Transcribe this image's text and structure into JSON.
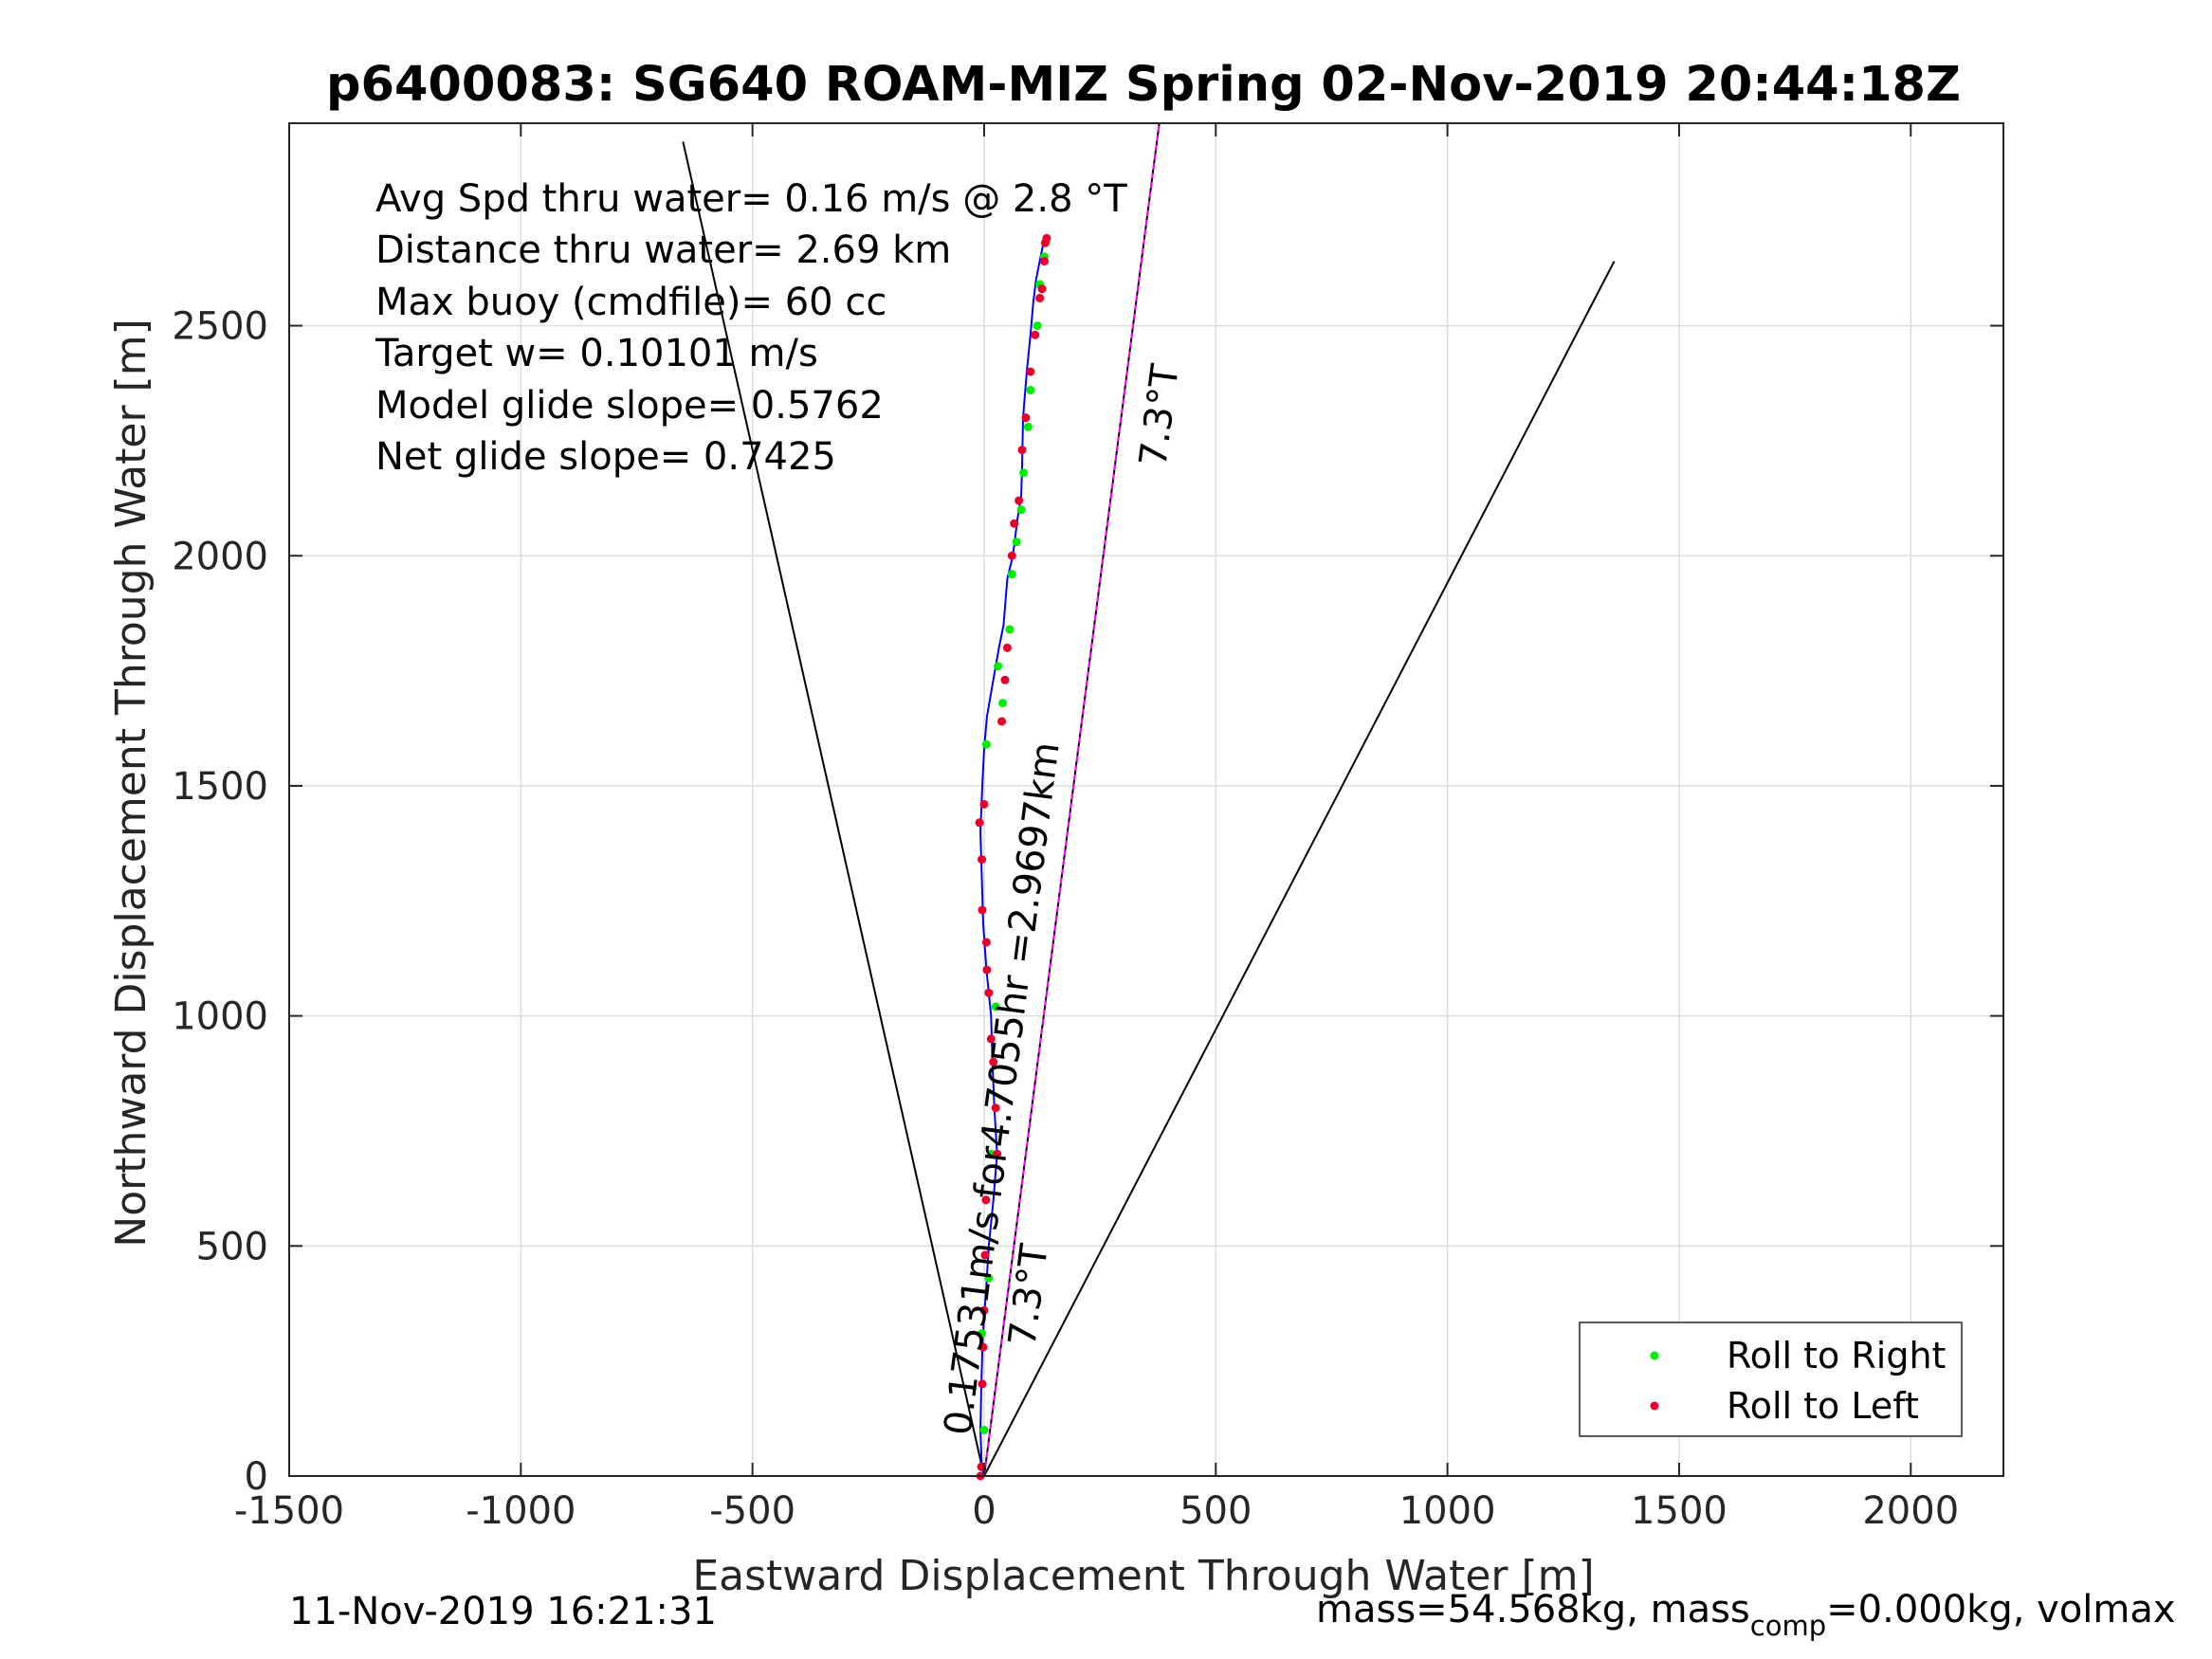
{
  "colors": {
    "track": "#0000ff",
    "roll_right": "#00ee00",
    "roll_left": "#e8002a",
    "course_line": "#ff00ff",
    "grid": "#dddddd",
    "axis": "#262626"
  },
  "footer": {
    "timestamp": "11-Nov-2019 16:21:31",
    "mass_prefix": "mass=54.568kg, mass",
    "mass_sub": "comp",
    "mass_suffix": "=0.000kg, volmax"
  },
  "chart_data": {
    "type": "line",
    "title": "p6400083: SG640 ROAM-MIZ Spring 02-Nov-2019 20:44:18Z",
    "xlabel": "Eastward Displacement Through Water [m]",
    "ylabel": "Northward Displacement Through Water [m]",
    "xlim": [
      -1500,
      2200
    ],
    "ylim": [
      0,
      2940
    ],
    "xticks": [
      -1500,
      -1000,
      -500,
      0,
      500,
      1000,
      1500,
      2000
    ],
    "yticks": [
      0,
      500,
      1000,
      1500,
      2000,
      2500
    ],
    "grid": true,
    "legend_position": "bottom-right",
    "legend": [
      "Roll to Right",
      "Roll to Left"
    ],
    "annotations": [
      "Avg Spd thru water=  0.16 m/s @   2.8 °T",
      "Distance thru water=  2.69 km",
      "Max buoy (cmdfile)= 60 cc",
      "Target w= 0.10101 m/s",
      "Model glide slope= 0.5762",
      "Net glide slope= 0.7425"
    ],
    "angle_labels": [
      "7.3°T",
      "7.3°T"
    ],
    "course_label": "0.17531m/s for4.7055hr =2.9697km",
    "track": {
      "name": "Track",
      "x": [
        0,
        -5,
        -8,
        -6,
        -3,
        4,
        10,
        20,
        28,
        22,
        18,
        15,
        5,
        -2,
        -5,
        -8,
        -4,
        0,
        6,
        18,
        25,
        32,
        42,
        50,
        62,
        72,
        80,
        82,
        84,
        92,
        100,
        106,
        112,
        118,
        122,
        126,
        130
      ],
      "y": [
        0,
        20,
        100,
        200,
        300,
        400,
        500,
        600,
        700,
        800,
        900,
        1000,
        1100,
        1200,
        1300,
        1400,
        1500,
        1580,
        1650,
        1720,
        1760,
        1800,
        1850,
        1950,
        2000,
        2080,
        2130,
        2200,
        2300,
        2400,
        2480,
        2550,
        2600,
        2630,
        2650,
        2670,
        2690
      ]
    },
    "roll_to_right": {
      "x": [
        0,
        25,
        40,
        55,
        70,
        85,
        100,
        115,
        130,
        10,
        5,
        -5,
        15,
        30,
        60,
        80,
        95,
        120
      ],
      "y": [
        100,
        1020,
        1680,
        1840,
        2030,
        2180,
        2360,
        2500,
        2650,
        430,
        1590,
        310,
        700,
        1760,
        1960,
        2100,
        2280,
        2590
      ]
    },
    "roll_to_left": {
      "x": [
        -8,
        -6,
        -4,
        -2,
        0,
        2,
        4,
        -4,
        6,
        10,
        15,
        20,
        25,
        28,
        38,
        45,
        50,
        60,
        65,
        75,
        82,
        90,
        100,
        110,
        120,
        125,
        130,
        132,
        135,
        -5,
        -10,
        0,
        5
      ],
      "y": [
        0,
        20,
        200,
        280,
        360,
        480,
        600,
        1230,
        1100,
        1050,
        950,
        900,
        800,
        700,
        1640,
        1730,
        1800,
        2000,
        2070,
        2120,
        2230,
        2300,
        2400,
        2480,
        2560,
        2580,
        2640,
        2680,
        2690,
        1340,
        1420,
        1460,
        1160
      ]
    },
    "cone_lines": [
      {
        "from": [
          0,
          0
        ],
        "to": [
          -650,
          2900
        ]
      },
      {
        "from": [
          0,
          0
        ],
        "to": [
          1360,
          2640
        ]
      },
      {
        "from": [
          0,
          0
        ],
        "to": [
          378,
          2940
        ]
      }
    ],
    "course_line": {
      "from": [
        0,
        0
      ],
      "to": [
        378,
        2940
      ]
    }
  }
}
